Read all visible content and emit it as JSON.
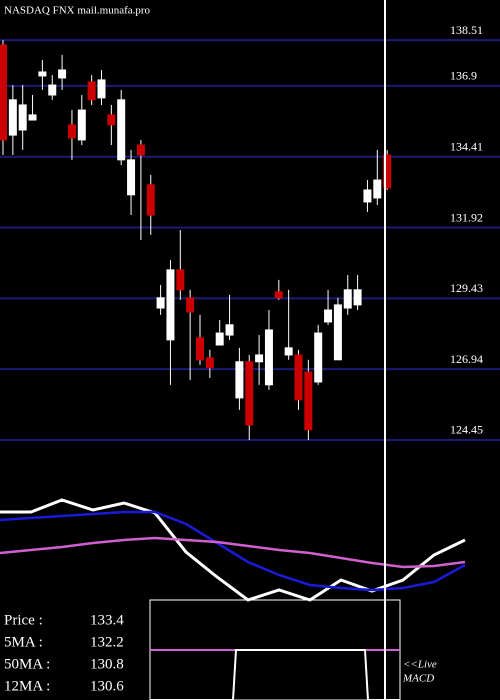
{
  "chart_data": {
    "type": "candlestick",
    "title": "NASDAQ FNX mail.munafa.pro",
    "ylim": [
      122.34,
      139.92
    ],
    "yticks": [
      138.51,
      136.9,
      134.41,
      131.92,
      129.43,
      126.94,
      124.45
    ],
    "grid": true,
    "up_color": "#ffffff",
    "down_color": "#cc0000",
    "grid_color": "#1c1c78",
    "open": [
      138.34,
      135.17,
      135.35,
      135.7,
      137.25,
      136.58,
      137.18,
      135.53,
      135.0,
      137.04,
      136.48,
      135.88,
      134.3,
      133.07,
      134.82,
      133.42,
      129.09,
      127.97,
      130.43,
      129.45,
      128.04,
      127.34,
      127.79,
      128.14,
      125.93,
      127.2,
      127.2,
      126.39,
      129.66,
      127.44,
      127.44,
      126.84,
      126.49,
      128.6,
      127.27,
      129.09,
      129.2,
      132.82,
      132.96,
      134.47
    ],
    "high": [
      138.51,
      136.93,
      136.93,
      136.58,
      137.81,
      137.28,
      137.99,
      136.05,
      136.58,
      137.28,
      137.46,
      136.23,
      136.76,
      134.65,
      135.0,
      133.77,
      129.9,
      130.78,
      131.83,
      129.73,
      128.85,
      127.62,
      128.67,
      129.55,
      127.69,
      127.44,
      128.14,
      129.02,
      130.08,
      129.73,
      127.62,
      127.27,
      128.5,
      129.73,
      129.45,
      130.25,
      130.25,
      133.59,
      134.65,
      134.65
    ],
    "low": [
      134.47,
      134.47,
      134.65,
      135.7,
      136.76,
      136.41,
      136.76,
      134.3,
      134.82,
      136.23,
      136.23,
      134.82,
      134.12,
      132.36,
      131.48,
      131.66,
      128.85,
      126.39,
      129.38,
      126.56,
      127.09,
      126.63,
      127.79,
      127.97,
      125.51,
      124.45,
      126.39,
      126.21,
      129.38,
      127.27,
      125.51,
      124.45,
      126.39,
      128.5,
      127.27,
      128.85,
      129.02,
      132.47,
      132.71,
      133.24
    ],
    "close": [
      135.0,
      136.41,
      136.23,
      135.88,
      137.39,
      136.93,
      137.46,
      135.07,
      136.05,
      136.41,
      137.11,
      135.53,
      136.41,
      134.3,
      134.47,
      132.36,
      129.45,
      130.43,
      129.73,
      128.95,
      127.27,
      126.99,
      128.21,
      128.5,
      127.2,
      124.98,
      127.44,
      128.32,
      129.45,
      127.69,
      125.86,
      124.81,
      128.21,
      129.02,
      129.2,
      129.73,
      129.73,
      133.24,
      133.59,
      133.31
    ],
    "indicator": {
      "ylim": [
        0,
        120
      ],
      "series": [
        {
          "name": "white",
          "color": "#ffffff",
          "values": [
            98,
            98,
            110,
            100,
            107,
            97,
            58,
            33,
            10,
            20,
            10,
            30,
            19,
            30,
            55,
            70
          ]
        },
        {
          "name": "blue",
          "color": "#1a1ad8",
          "values": [
            90,
            92,
            94,
            96,
            98,
            98,
            86,
            67,
            48,
            35,
            25,
            22,
            20,
            22,
            28,
            45
          ]
        },
        {
          "name": "pink",
          "color": "#d060d0",
          "values": [
            57,
            60,
            63,
            67,
            70,
            72,
            70,
            68,
            64,
            60,
            57,
            52,
            47,
            43,
            44,
            48
          ]
        }
      ]
    },
    "info": [
      {
        "label": "Price   :",
        "value": 133.4
      },
      {
        "label": "5MA :",
        "value": 132.2
      },
      {
        "label": "50MA :",
        "value": 130.8
      },
      {
        "label": "12MA :",
        "value": 130.6
      }
    ],
    "live_label": "<<Live",
    "macd_label": "MACD"
  }
}
